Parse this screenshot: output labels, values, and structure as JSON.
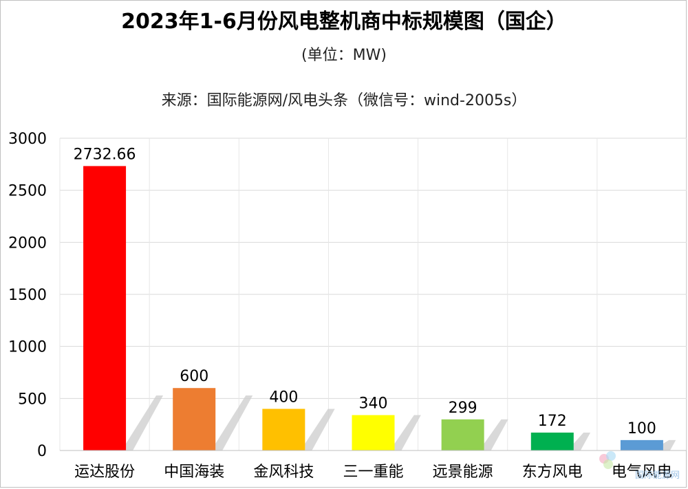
{
  "title": "2023年1-6月份风电整机商中标规模图（国企）",
  "unit": "(单位：MW)",
  "source": "来源：国际能源网/风电头条（微信号：wind-2005s）",
  "watermark": "国际能源网",
  "chart_data": {
    "type": "bar",
    "categories": [
      "运达股份",
      "中国海装",
      "金风科技",
      "三一重能",
      "远景能源",
      "东方风电",
      "电气风电"
    ],
    "values": [
      2732.66,
      600,
      400,
      340,
      299,
      172,
      100
    ],
    "value_labels": [
      "2732.66",
      "600",
      "400",
      "340",
      "299",
      "172",
      "100"
    ],
    "colors": [
      "#ff0000",
      "#ed7d31",
      "#ffc000",
      "#ffff00",
      "#92d050",
      "#00b050",
      "#5b9bd5"
    ],
    "ylim": [
      0,
      3000
    ],
    "yticks": [
      0,
      500,
      1000,
      1500,
      2000,
      2500,
      3000
    ],
    "grid": true,
    "shadow_color": "#d0d0d0"
  }
}
